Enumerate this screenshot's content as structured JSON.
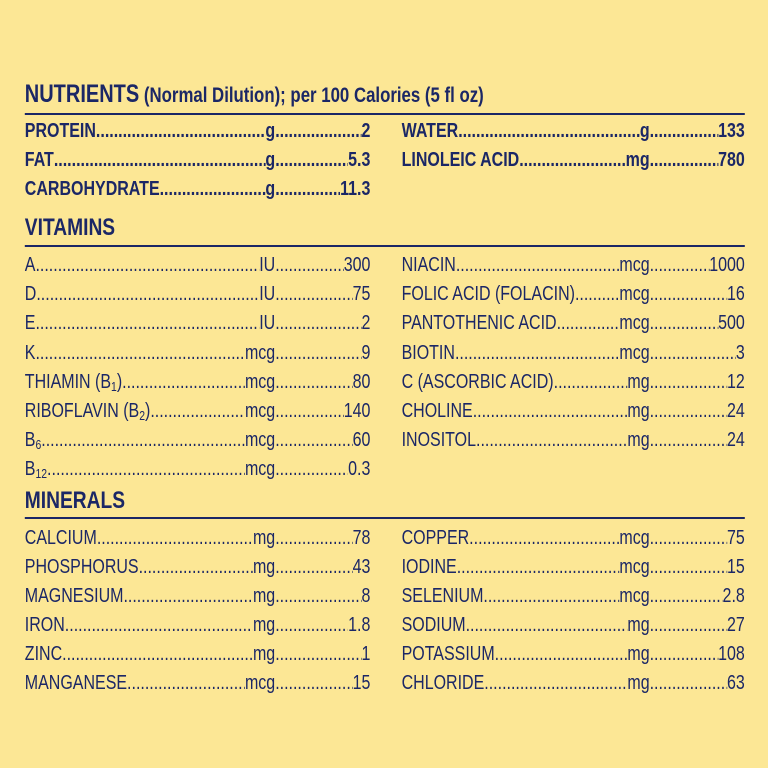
{
  "title": {
    "main": "NUTRIENTS",
    "rest": " (Normal Dilution); per 100 Calories (5 fl oz)"
  },
  "sections": [
    {
      "rows": {
        "left": [
          {
            "name": "PROTEIN",
            "unit": "g",
            "value": "2"
          },
          {
            "name": "FAT",
            "unit": "g",
            "value": "5.3"
          },
          {
            "name": "CARBOHYDRATE",
            "unit": "g",
            "value": "11.3"
          }
        ],
        "right": [
          {
            "name": "WATER",
            "unit": "g",
            "value": "133"
          },
          {
            "name": "LINOLEIC ACID",
            "unit": "mg",
            "value": "780"
          }
        ]
      }
    },
    {
      "heading": "VITAMINS",
      "rows": {
        "left": [
          {
            "name": "A",
            "unit": "IU",
            "value": "300"
          },
          {
            "name": "D",
            "unit": "IU",
            "value": "75"
          },
          {
            "name": "E",
            "unit": "IU",
            "value": "2"
          },
          {
            "name": "K",
            "unit": "mcg",
            "value": "9"
          },
          {
            "name": "THIAMIN (B",
            "sub": "1",
            "after": ")",
            "unit": "mcg",
            "value": "80"
          },
          {
            "name": "RIBOFLAVIN (B",
            "sub": "2",
            "after": ")",
            "unit": "mcg",
            "value": "140"
          },
          {
            "name": "B",
            "sub": "6",
            "unit": "mcg",
            "value": "60"
          },
          {
            "name": "B",
            "sub": "12",
            "unit": "mcg",
            "value": "0.3"
          }
        ],
        "right": [
          {
            "name": "NIACIN",
            "unit": "mcg",
            "value": "1000"
          },
          {
            "name": "FOLIC ACID (FOLACIN)",
            "unit": "mcg",
            "value": "16"
          },
          {
            "name": "PANTOTHENIC ACID",
            "unit": "mcg",
            "value": "500"
          },
          {
            "name": "BIOTIN",
            "unit": "mcg",
            "value": "3"
          },
          {
            "name": "C (ASCORBIC ACID)",
            "unit": "mg",
            "value": "12"
          },
          {
            "name": "CHOLINE",
            "unit": "mg",
            "value": "24"
          },
          {
            "name": "INOSITOL",
            "unit": "mg",
            "value": "24"
          }
        ]
      }
    },
    {
      "heading": "MINERALS",
      "rows": {
        "left": [
          {
            "name": "CALCIUM",
            "unit": "mg",
            "value": "78"
          },
          {
            "name": "PHOSPHORUS",
            "unit": "mg",
            "value": "43"
          },
          {
            "name": "MAGNESIUM",
            "unit": "mg",
            "value": "8"
          },
          {
            "name": "IRON",
            "unit": "mg",
            "value": "1.8"
          },
          {
            "name": "ZINC",
            "unit": "mg",
            "value": "1"
          },
          {
            "name": "MANGANESE",
            "unit": "mcg",
            "value": "15"
          }
        ],
        "right": [
          {
            "name": "COPPER",
            "unit": "mcg",
            "value": "75"
          },
          {
            "name": "IODINE",
            "unit": "mcg",
            "value": "15"
          },
          {
            "name": "SELENIUM",
            "unit": "mcg",
            "value": "2.8"
          },
          {
            "name": "SODIUM",
            "unit": "mg",
            "value": "27"
          },
          {
            "name": "POTASSIUM",
            "unit": "mg",
            "value": "108"
          },
          {
            "name": "CHLORIDE",
            "unit": "mg",
            "value": "63"
          }
        ]
      }
    }
  ]
}
